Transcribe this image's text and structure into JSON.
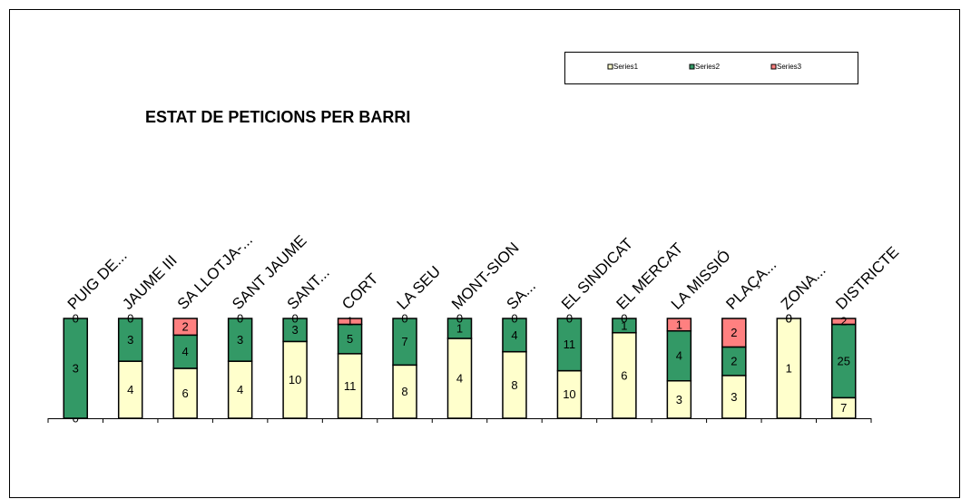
{
  "chart_data": {
    "type": "bar",
    "stacked": "percent",
    "title": "ESTAT DE PETICIONS PER BARRI",
    "categories": [
      "PUIG DE...",
      "JAUME III",
      "SA LLOTJA-...",
      "SANT JAUME",
      "SANT...",
      "CORT",
      "LA SEU",
      "MONT-SION",
      "SA...",
      "EL SINDICAT",
      "EL MERCAT",
      "LA MISSIÓ",
      "PLAÇA...",
      "ZONA...",
      "DISTRICTE"
    ],
    "series": [
      {
        "name": "Series1",
        "color": "#ffffcc",
        "values": [
          0,
          4,
          6,
          4,
          10,
          11,
          8,
          4,
          8,
          10,
          6,
          3,
          3,
          1,
          7
        ]
      },
      {
        "name": "Series2",
        "color": "#339966",
        "values": [
          3,
          3,
          4,
          3,
          3,
          5,
          7,
          1,
          4,
          11,
          1,
          4,
          2,
          0,
          25
        ]
      },
      {
        "name": "Series3",
        "color": "#ff8080",
        "values": [
          0,
          0,
          2,
          0,
          0,
          1,
          0,
          0,
          0,
          0,
          0,
          1,
          2,
          0,
          2
        ]
      }
    ]
  }
}
